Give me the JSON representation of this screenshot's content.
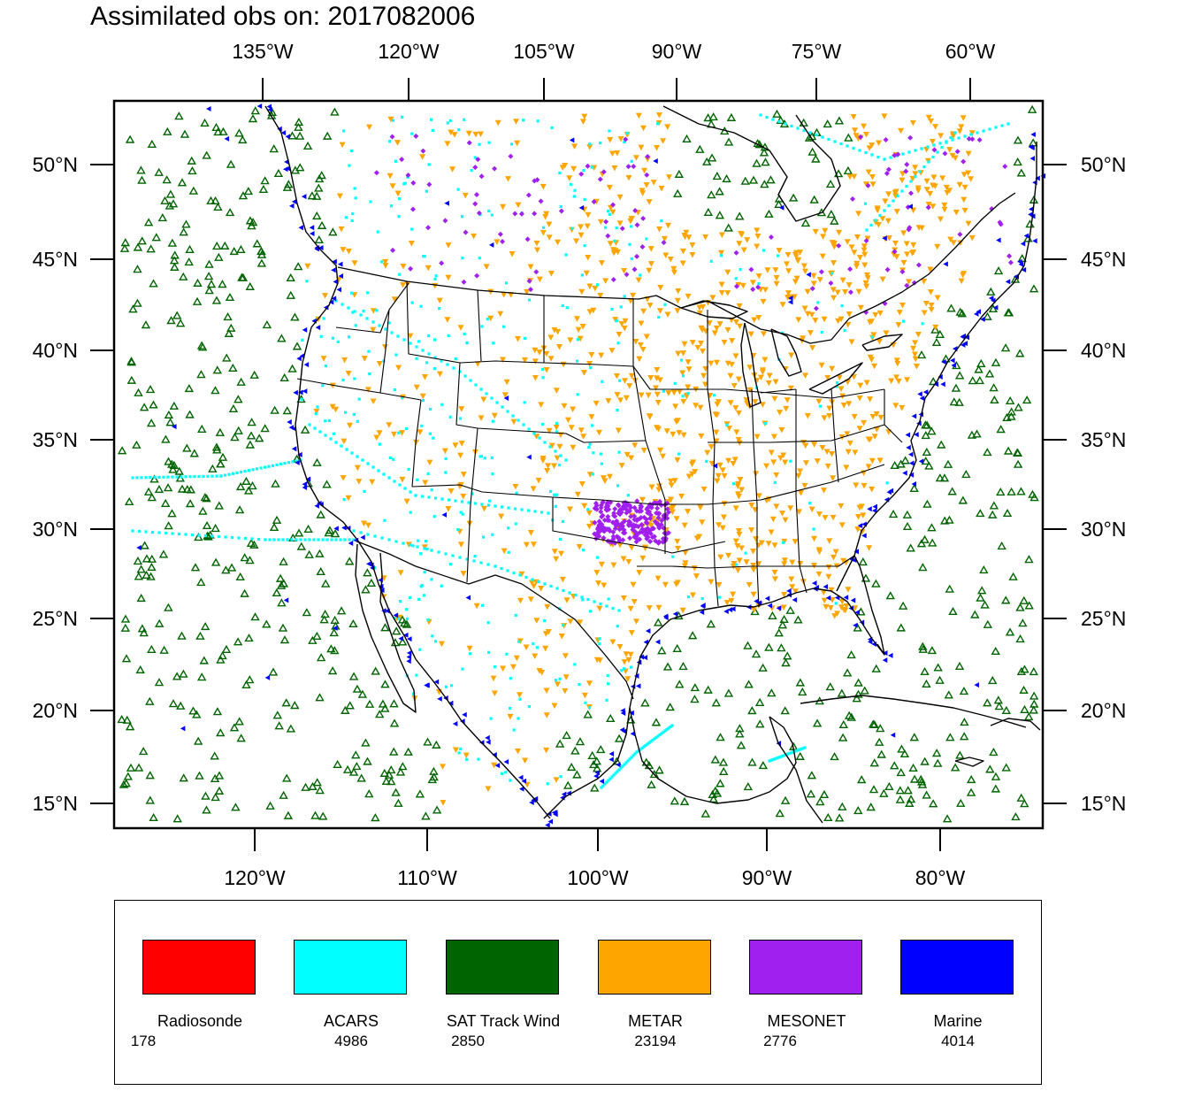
{
  "title": "Assimilated obs on: 2017082006",
  "map": {
    "projection": "lambert-conformal",
    "region": "CONUS and adjacent oceans, Gulf of Mexico, Caribbean",
    "top_lon_labels": [
      "135°W",
      "120°W",
      "105°W",
      "90°W",
      "75°W",
      "60°W"
    ],
    "bottom_lon_labels": [
      "120°W",
      "110°W",
      "100°W",
      "90°W",
      "80°W"
    ],
    "lat_labels": [
      "50°N",
      "45°N",
      "40°N",
      "35°N",
      "30°N",
      "25°N",
      "20°N",
      "15°N"
    ]
  },
  "legend": [
    {
      "name": "Radiosonde",
      "count": "178",
      "color": "#ff0000",
      "marker": "circle"
    },
    {
      "name": "ACARS",
      "count": "4986",
      "color": "#00ffff",
      "marker": "dot"
    },
    {
      "name": "SAT Track Wind",
      "count": "2850",
      "color": "#006400",
      "marker": "hollow-triangle-up"
    },
    {
      "name": "METAR",
      "count": "23194",
      "color": "#ffa500",
      "marker": "triangle-down"
    },
    {
      "name": "MESONET",
      "count": "2776",
      "color": "#a020f0",
      "marker": "diamond"
    },
    {
      "name": "Marine",
      "count": "4014",
      "color": "#0000ff",
      "marker": "triangle-left"
    }
  ]
}
